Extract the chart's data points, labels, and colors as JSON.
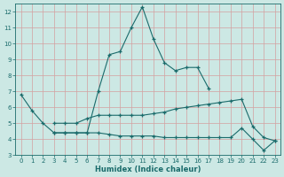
{
  "xlabel": "Humidex (Indice chaleur)",
  "x": [
    0,
    1,
    2,
    3,
    4,
    5,
    6,
    7,
    8,
    9,
    10,
    11,
    12,
    13,
    14,
    15,
    16,
    17,
    18,
    19,
    20,
    21,
    22,
    23
  ],
  "lines": [
    [
      6.8,
      5.8,
      5.0,
      4.4,
      4.4,
      4.4,
      4.4,
      7.0,
      9.3,
      9.5,
      11.0,
      12.3,
      10.3,
      8.8,
      8.3,
      8.5,
      8.5,
      7.2,
      null,
      null,
      null,
      null,
      null,
      null
    ],
    [
      null,
      null,
      null,
      5.0,
      5.0,
      5.0,
      5.3,
      5.5,
      5.5,
      5.5,
      5.5,
      5.5,
      5.6,
      5.7,
      5.9,
      6.0,
      6.1,
      6.2,
      6.3,
      6.4,
      6.5,
      4.8,
      4.1,
      3.9
    ],
    [
      null,
      null,
      null,
      4.4,
      4.4,
      4.4,
      4.4,
      4.4,
      4.3,
      4.2,
      4.2,
      4.2,
      4.2,
      4.1,
      4.1,
      4.1,
      4.1,
      4.1,
      4.1,
      4.1,
      4.7,
      4.0,
      3.3,
      3.9
    ]
  ],
  "line_color": "#1a6b6b",
  "bg_color": "#cce8e4",
  "grid_color": "#d4a0a0",
  "ylim": [
    3,
    12.5
  ],
  "xlim": [
    -0.5,
    23.5
  ],
  "yticks": [
    3,
    4,
    5,
    6,
    7,
    8,
    9,
    10,
    11,
    12
  ],
  "xticks": [
    0,
    1,
    2,
    3,
    4,
    5,
    6,
    7,
    8,
    9,
    10,
    11,
    12,
    13,
    14,
    15,
    16,
    17,
    18,
    19,
    20,
    21,
    22,
    23
  ],
  "tick_fontsize": 5.0,
  "xlabel_fontsize": 6.0,
  "line_width": 0.8,
  "marker_size": 3.5
}
